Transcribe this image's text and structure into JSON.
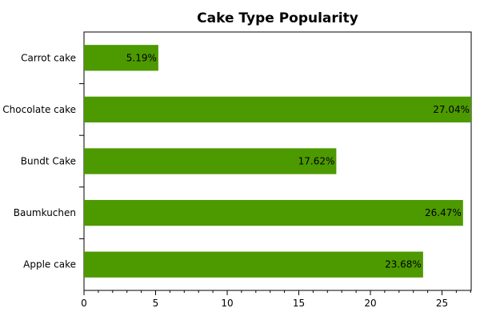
{
  "chart_data": {
    "type": "bar",
    "orientation": "horizontal",
    "title": "Cake Type Popularity",
    "categories": [
      "Apple cake",
      "Baumkuchen",
      "Bundt Cake",
      "Chocolate cake",
      "Carrot cake"
    ],
    "values": [
      23.68,
      26.47,
      17.62,
      27.04,
      5.19
    ],
    "value_labels": [
      "23.68%",
      "26.47%",
      "17.62%",
      "27.04%",
      "5.19%"
    ],
    "xlim": [
      0,
      27.04
    ],
    "xticks": [
      0,
      5,
      10,
      15,
      20,
      25
    ],
    "xlabel": "",
    "ylabel": "",
    "grid": false,
    "bar_color": "#4d9900"
  }
}
